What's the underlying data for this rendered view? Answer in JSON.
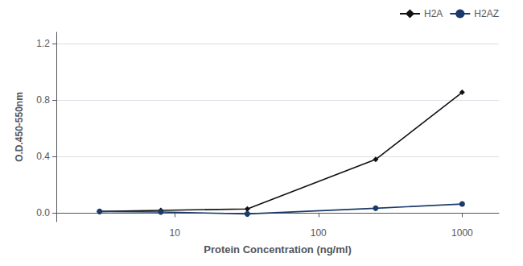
{
  "chart_data": {
    "type": "line",
    "xlabel": "Protein Concentration (ng/ml)",
    "ylabel": "O.D.450-550nm",
    "x": [
      3,
      8,
      32,
      250,
      1000
    ],
    "series": [
      {
        "name": "H2A",
        "color": "#111111",
        "marker": "diamond",
        "values": [
          0.012,
          0.02,
          0.03,
          0.38,
          0.855
        ]
      },
      {
        "name": "H2AZ",
        "color": "#1a3a6b",
        "marker": "circle",
        "values": [
          0.012,
          0.008,
          -0.005,
          0.035,
          0.065
        ]
      }
    ],
    "xlim": [
      1.5,
      1800
    ],
    "xticks": [
      10,
      100,
      1000
    ],
    "ylim": [
      -0.06,
      1.28
    ],
    "yticks": [
      {
        "value": 0,
        "label": "0.0"
      },
      0.4,
      0.8,
      1.2
    ],
    "log": "x",
    "grid": true,
    "legend": "upper right"
  }
}
